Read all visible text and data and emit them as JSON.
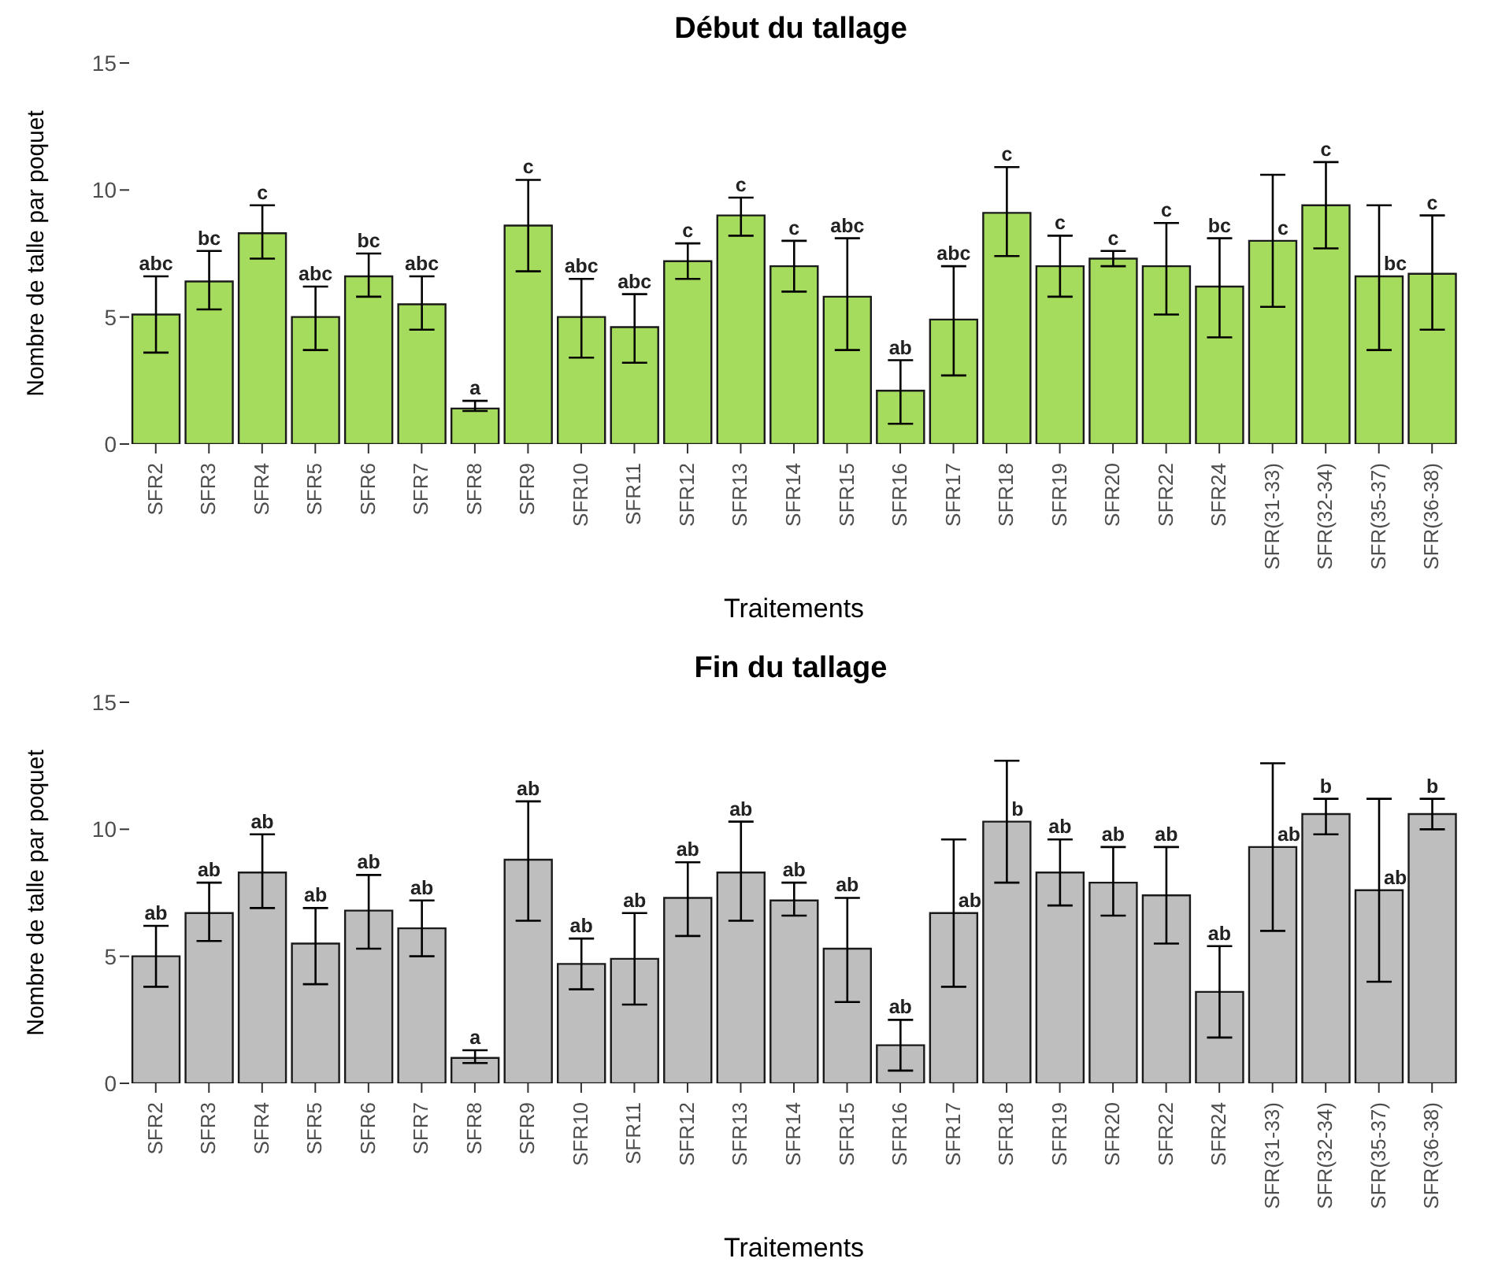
{
  "chart_data": [
    {
      "type": "bar",
      "title": "Début du tallage",
      "xlabel": "Traitements",
      "ylabel": "Nombre de talle par poquet",
      "categories": [
        "SFR2",
        "SFR3",
        "SFR4",
        "SFR5",
        "SFR6",
        "SFR7",
        "SFR8",
        "SFR9",
        "SFR10",
        "SFR11",
        "SFR12",
        "SFR13",
        "SFR14",
        "SFR15",
        "SFR16",
        "SFR17",
        "SFR18",
        "SFR19",
        "SFR20",
        "SFR22",
        "SFR24",
        "SFR(31-33)",
        "SFR(32-34)",
        "SFR(35-37)",
        "SFR(36-38)"
      ],
      "series": [
        {
          "color": "#a6dc5e",
          "values": [
            5.1,
            6.4,
            8.3,
            5.0,
            6.6,
            5.5,
            1.4,
            8.6,
            5.0,
            4.6,
            7.2,
            9.0,
            7.0,
            5.8,
            2.1,
            4.9,
            9.1,
            7.0,
            7.3,
            7.0,
            6.2,
            8.0,
            9.4,
            6.6,
            6.7
          ],
          "errors": [
            [
              3.6,
              6.6
            ],
            [
              5.3,
              7.6
            ],
            [
              7.3,
              9.4
            ],
            [
              3.7,
              6.2
            ],
            [
              5.8,
              7.5
            ],
            [
              4.5,
              6.6
            ],
            [
              1.3,
              1.7
            ],
            [
              6.8,
              10.4
            ],
            [
              3.4,
              6.5
            ],
            [
              3.2,
              5.9
            ],
            [
              6.5,
              7.9
            ],
            [
              8.2,
              9.7
            ],
            [
              6.0,
              8.0
            ],
            [
              3.7,
              8.1
            ],
            [
              0.8,
              3.3
            ],
            [
              2.7,
              7.0
            ],
            [
              7.4,
              10.9
            ],
            [
              5.8,
              8.2
            ],
            [
              7.0,
              7.6
            ],
            [
              5.1,
              8.7
            ],
            [
              4.2,
              8.1
            ],
            [
              5.4,
              10.6
            ],
            [
              7.7,
              11.1
            ],
            [
              3.7,
              9.4
            ],
            [
              4.5,
              9.0
            ]
          ],
          "value_labels": [
            "abc",
            "bc",
            "c",
            "abc",
            "bc",
            "abc",
            "a",
            "c",
            "abc",
            "abc",
            "c",
            "c",
            "c",
            "abc",
            "ab",
            "abc",
            "c",
            "c",
            "c",
            "c",
            "bc",
            "c",
            "c",
            "bc",
            "c"
          ]
        }
      ],
      "ylim": [
        0,
        15
      ],
      "yticks": [
        0,
        5,
        10,
        15
      ],
      "legend": false,
      "grid": false
    },
    {
      "type": "bar",
      "title": "Fin du tallage",
      "xlabel": "Traitements",
      "ylabel": "Nombre de talle par poquet",
      "categories": [
        "SFR2",
        "SFR3",
        "SFR4",
        "SFR5",
        "SFR6",
        "SFR7",
        "SFR8",
        "SFR9",
        "SFR10",
        "SFR11",
        "SFR12",
        "SFR13",
        "SFR14",
        "SFR15",
        "SFR16",
        "SFR17",
        "SFR18",
        "SFR19",
        "SFR20",
        "SFR22",
        "SFR24",
        "SFR(31-33)",
        "SFR(32-34)",
        "SFR(35-37)",
        "SFR(36-38)"
      ],
      "series": [
        {
          "color": "#bebebe",
          "values": [
            5.0,
            6.7,
            8.3,
            5.5,
            6.8,
            6.1,
            1.0,
            8.8,
            4.7,
            4.9,
            7.3,
            8.3,
            7.2,
            5.3,
            1.5,
            6.7,
            10.3,
            8.3,
            7.9,
            7.4,
            3.6,
            9.3,
            10.6,
            7.6,
            10.6
          ],
          "errors": [
            [
              3.8,
              6.2
            ],
            [
              5.6,
              7.9
            ],
            [
              6.9,
              9.8
            ],
            [
              3.9,
              6.9
            ],
            [
              5.3,
              8.2
            ],
            [
              5.0,
              7.2
            ],
            [
              0.8,
              1.3
            ],
            [
              6.4,
              11.1
            ],
            [
              3.7,
              5.7
            ],
            [
              3.1,
              6.7
            ],
            [
              5.8,
              8.7
            ],
            [
              6.4,
              10.3
            ],
            [
              6.6,
              7.9
            ],
            [
              3.2,
              7.3
            ],
            [
              0.5,
              2.5
            ],
            [
              3.8,
              9.6
            ],
            [
              7.9,
              12.7
            ],
            [
              7.0,
              9.6
            ],
            [
              6.6,
              9.3
            ],
            [
              5.5,
              9.3
            ],
            [
              1.8,
              5.4
            ],
            [
              6.0,
              12.6
            ],
            [
              9.8,
              11.2
            ],
            [
              4.0,
              11.2
            ],
            [
              10.0,
              11.2
            ]
          ],
          "value_labels": [
            "ab",
            "ab",
            "ab",
            "ab",
            "ab",
            "ab",
            "a",
            "ab",
            "ab",
            "ab",
            "ab",
            "ab",
            "ab",
            "ab",
            "ab",
            "ab",
            "b",
            "ab",
            "ab",
            "ab",
            "ab",
            "ab",
            "b",
            "ab",
            "b"
          ]
        }
      ],
      "ylim": [
        0,
        15
      ],
      "yticks": [
        0,
        5,
        10,
        15
      ],
      "legend": false,
      "grid": false
    }
  ]
}
